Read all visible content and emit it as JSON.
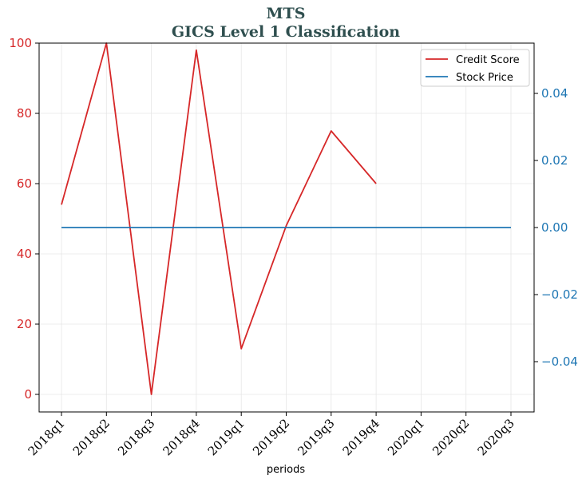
{
  "chart_data": {
    "type": "line",
    "title": "MTS",
    "subtitle": "GICS Level 1 Classification",
    "xlabel": "periods",
    "categories": [
      "2018q1",
      "2018q2",
      "2018q3",
      "2018q4",
      "2019q1",
      "2019q2",
      "2019q3",
      "2019q4",
      "2020q1",
      "2020q2",
      "2020q3"
    ],
    "y_left": {
      "ylim": [
        -5,
        100
      ],
      "ticks": [
        0,
        20,
        40,
        60,
        80,
        100
      ],
      "tick_labels": [
        "0",
        "20",
        "40",
        "60",
        "80",
        "100"
      ],
      "color": "#d62728"
    },
    "y_right": {
      "ylim": [
        -0.055,
        0.055
      ],
      "ticks": [
        -0.04,
        -0.02,
        0.0,
        0.02,
        0.04
      ],
      "tick_labels": [
        "−0.04",
        "−0.02",
        "0.00",
        "0.02",
        "0.04"
      ],
      "color": "#1f77b4"
    },
    "grid": true,
    "legend_position": "top-right",
    "series": [
      {
        "name": "Credit Score",
        "axis": "left",
        "color": "#d62728",
        "values": [
          54,
          100,
          0,
          98,
          13,
          48,
          75,
          60,
          null,
          null,
          null
        ]
      },
      {
        "name": "Stock Price",
        "axis": "right",
        "color": "#1f77b4",
        "values": [
          0,
          0,
          0,
          0,
          0,
          0,
          0,
          0,
          0,
          0,
          0
        ]
      }
    ]
  }
}
